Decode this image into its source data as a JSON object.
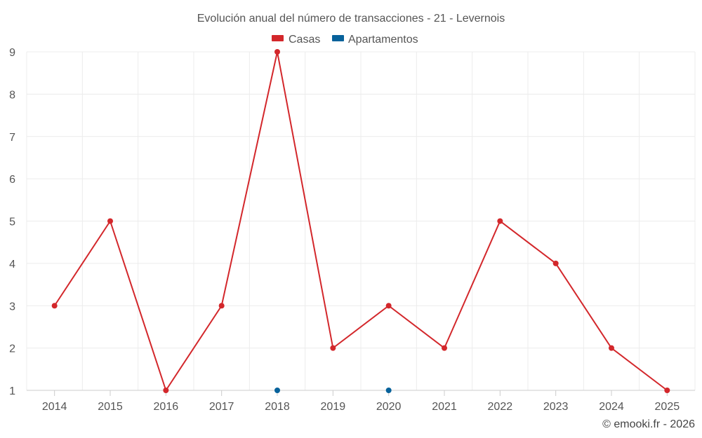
{
  "chart_data": {
    "type": "line",
    "title": "Evolución anual del número de transacciones - 21 - Levernois",
    "categories": [
      "2014",
      "2015",
      "2016",
      "2017",
      "2018",
      "2019",
      "2020",
      "2021",
      "2022",
      "2023",
      "2024",
      "2025"
    ],
    "series": [
      {
        "name": "Casas",
        "color": "#d3272b",
        "values": [
          3,
          5,
          1,
          3,
          9,
          2,
          3,
          2,
          5,
          4,
          2,
          1
        ]
      },
      {
        "name": "Apartamentos",
        "color": "#07629b",
        "values": [
          null,
          null,
          null,
          null,
          1,
          null,
          1,
          null,
          null,
          null,
          null,
          null
        ]
      }
    ],
    "y_ticks": [
      "1",
      "2",
      "3",
      "4",
      "5",
      "6",
      "7",
      "8",
      "9"
    ],
    "ylim": [
      1,
      9
    ],
    "xlabel": "",
    "ylabel": "",
    "legend_position": "top-center",
    "grid": true
  },
  "credit": "© emooki.fr - 2026"
}
